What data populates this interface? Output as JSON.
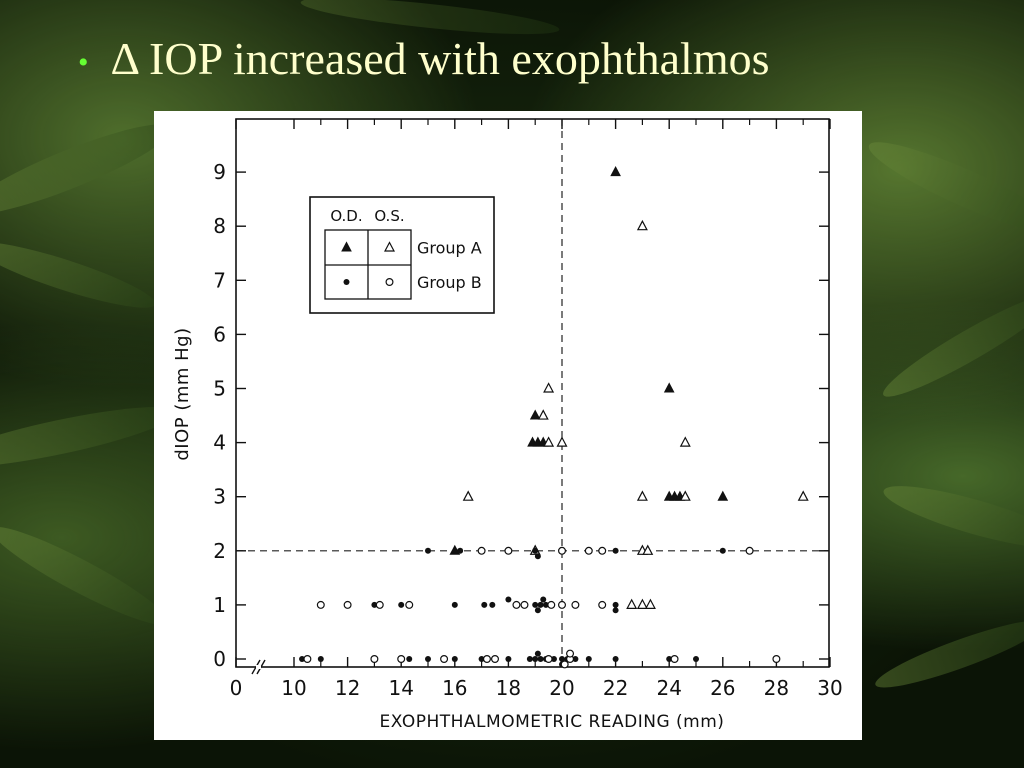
{
  "slide": {
    "bullet": "•",
    "title": "Δ IOP increased with exophthalmos"
  },
  "chart_data": {
    "type": "scatter",
    "xlabel": "EXOPHTHALMOMETRIC READING (mm)",
    "ylabel": "dIOP (mm Hg)",
    "xlim": [
      0,
      30
    ],
    "ylim": [
      0,
      9.5
    ],
    "x_ticks": [
      0,
      10,
      12,
      14,
      16,
      18,
      20,
      22,
      24,
      26,
      28,
      30
    ],
    "y_ticks": [
      0,
      1,
      2,
      3,
      4,
      5,
      6,
      7,
      8,
      9
    ],
    "x_axis_break": "between 0 and 10",
    "reference_lines": [
      {
        "axis": "x",
        "value": 20,
        "style": "dashed"
      },
      {
        "axis": "y",
        "value": 2,
        "style": "dashed"
      }
    ],
    "legend": {
      "placement": "top-left",
      "columns": [
        "O.D.",
        "O.S."
      ],
      "rows": [
        "Group A",
        "Group B"
      ]
    },
    "series": [
      {
        "name": "Group A O.D.",
        "marker": "filled-triangle",
        "points": [
          [
            22,
            9
          ],
          [
            24,
            5
          ],
          [
            19,
            4.5
          ],
          [
            18.9,
            4
          ],
          [
            19.1,
            4
          ],
          [
            19.3,
            4
          ],
          [
            24,
            3
          ],
          [
            24.2,
            3
          ],
          [
            24.4,
            3
          ],
          [
            26,
            3
          ],
          [
            16,
            2
          ]
        ]
      },
      {
        "name": "Group A O.S.",
        "marker": "open-triangle",
        "points": [
          [
            23,
            8
          ],
          [
            19.5,
            5
          ],
          [
            19.3,
            4.5
          ],
          [
            19.5,
            4
          ],
          [
            20,
            4
          ],
          [
            24.6,
            4
          ],
          [
            16.5,
            3
          ],
          [
            23,
            3
          ],
          [
            24.6,
            3
          ],
          [
            29,
            3
          ],
          [
            19,
            2
          ],
          [
            23,
            2
          ],
          [
            23.2,
            2
          ],
          [
            22.6,
            1
          ],
          [
            23,
            1
          ],
          [
            23.3,
            1
          ]
        ]
      },
      {
        "name": "Group B O.D.",
        "marker": "filled-circle",
        "points": [
          [
            15,
            2
          ],
          [
            16.2,
            2
          ],
          [
            22,
            2
          ],
          [
            26,
            2
          ],
          [
            13,
            1
          ],
          [
            14,
            1
          ],
          [
            16,
            1
          ],
          [
            17.1,
            1
          ],
          [
            17.4,
            1
          ],
          [
            18,
            1.1
          ],
          [
            19,
            1
          ],
          [
            19.2,
            1
          ],
          [
            19.4,
            1
          ],
          [
            19.1,
            0.9
          ],
          [
            19.3,
            1.1
          ],
          [
            22,
            1
          ],
          [
            22,
            0.9
          ],
          [
            19,
            2
          ],
          [
            19.1,
            1.9
          ],
          [
            10.3,
            0
          ],
          [
            11,
            0
          ],
          [
            14.3,
            0
          ],
          [
            15,
            0
          ],
          [
            16,
            0
          ],
          [
            17,
            0
          ],
          [
            18,
            0
          ],
          [
            18.8,
            0
          ],
          [
            19,
            0
          ],
          [
            19.2,
            0
          ],
          [
            19.4,
            0
          ],
          [
            19.7,
            0
          ],
          [
            20,
            0
          ],
          [
            20.2,
            0
          ],
          [
            20.5,
            0
          ],
          [
            21,
            0
          ],
          [
            22,
            0
          ],
          [
            24,
            0
          ],
          [
            25,
            0
          ],
          [
            20,
            -0.1
          ],
          [
            19.1,
            0.1
          ]
        ]
      },
      {
        "name": "Group B O.S.",
        "marker": "open-circle",
        "points": [
          [
            17,
            2
          ],
          [
            18,
            2
          ],
          [
            20,
            2
          ],
          [
            21,
            2
          ],
          [
            21.5,
            2
          ],
          [
            27,
            2
          ],
          [
            11,
            1
          ],
          [
            12,
            1
          ],
          [
            13.2,
            1
          ],
          [
            14.3,
            1
          ],
          [
            18.3,
            1
          ],
          [
            18.6,
            1
          ],
          [
            19.6,
            1
          ],
          [
            20,
            1
          ],
          [
            20.5,
            1
          ],
          [
            21.5,
            1
          ],
          [
            10.5,
            0
          ],
          [
            13,
            0
          ],
          [
            14,
            0
          ],
          [
            15.6,
            0
          ],
          [
            17.2,
            0
          ],
          [
            17.5,
            0
          ],
          [
            19.5,
            0
          ],
          [
            20.3,
            0
          ],
          [
            24.2,
            0
          ],
          [
            28,
            0
          ],
          [
            20.1,
            -0.1
          ],
          [
            20.3,
            0.1
          ]
        ]
      }
    ]
  }
}
